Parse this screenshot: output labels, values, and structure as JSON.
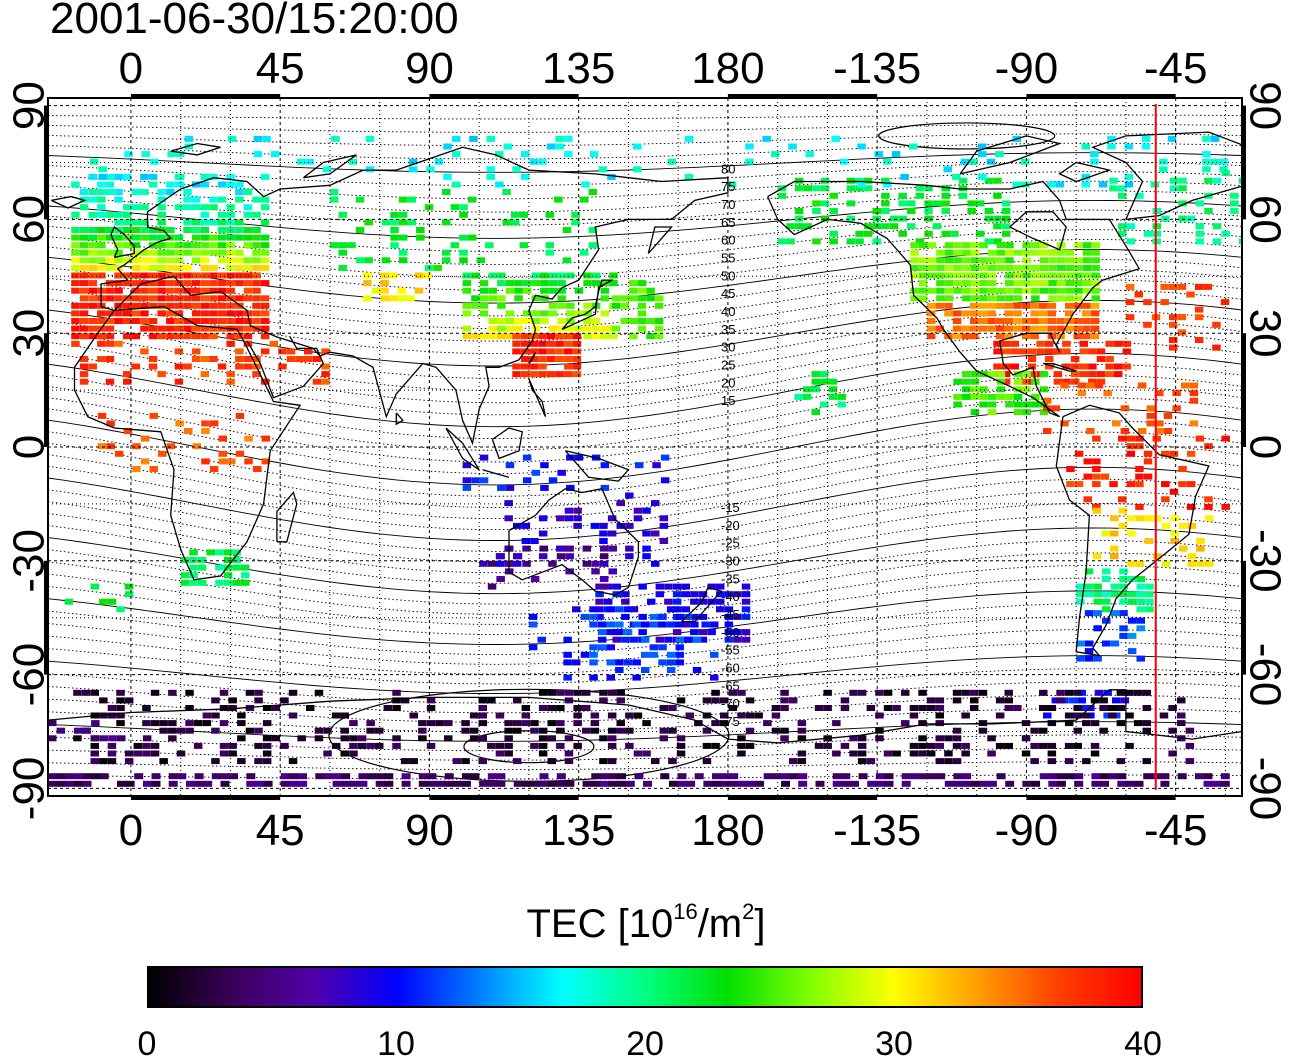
{
  "title": "2001-06-30/15:20:00",
  "map": {
    "top_lon_labels": [
      "0",
      "45",
      "90",
      "135",
      "180",
      "-135",
      "-90",
      "-45"
    ],
    "bottom_lon_labels": [
      "0",
      "45",
      "90",
      "135",
      "180",
      "-135",
      "-90",
      "-45"
    ],
    "left_lat_labels": [
      "90",
      "60",
      "30",
      "0",
      "-30",
      "-60",
      "-90"
    ],
    "right_lat_labels": [
      "90",
      "60",
      "30",
      "0",
      "-30",
      "-60",
      "-90"
    ],
    "lon_ticks_deg": [
      0,
      45,
      90,
      135,
      180,
      225,
      270,
      315
    ],
    "lat_ticks_deg": [
      90,
      60,
      30,
      0,
      -30,
      -60,
      -90
    ],
    "lon_range_deg": [
      -25,
      335
    ],
    "lat_range_deg": [
      -92,
      92
    ],
    "grid": true,
    "grid_line_style": "dotted",
    "magnetic_latitude_labels": [
      "80",
      "75",
      "70",
      "65",
      "60",
      "55",
      "50",
      "45",
      "40",
      "35",
      "30",
      "25",
      "20",
      "15",
      "-15",
      "-20",
      "-25",
      "-30",
      "-35",
      "-40",
      "-45",
      "-50",
      "-55",
      "-60",
      "-65",
      "-70",
      "-75"
    ],
    "terminator_line_color": "#ff0000",
    "terminator_lon_deg": -51
  },
  "colorbar": {
    "title_main": "TEC  [10",
    "title_sup1": "16",
    "title_mid": "/m",
    "title_sup2": "2",
    "title_end": "]",
    "tick_labels": [
      "0",
      "10",
      "20",
      "30",
      "40"
    ],
    "range": [
      0,
      40
    ],
    "colors": [
      "#000000",
      "#3a0058",
      "#5000a8",
      "#0000ff",
      "#0080ff",
      "#00ffff",
      "#00ff80",
      "#00e000",
      "#80ff00",
      "#ffff00",
      "#ffa000",
      "#ff4000",
      "#ff0000"
    ]
  }
}
